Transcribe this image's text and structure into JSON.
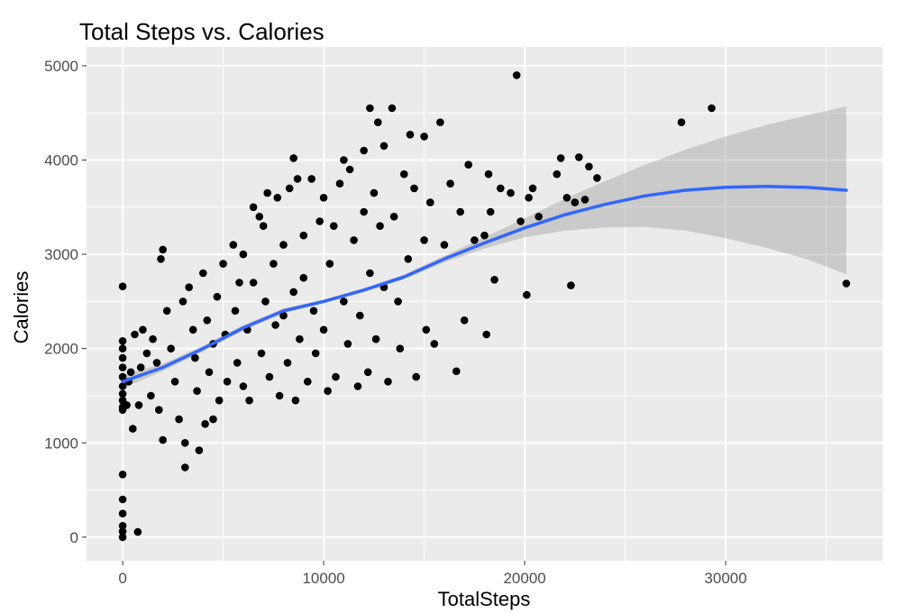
{
  "chart_data": {
    "type": "scatter",
    "title": "Total Steps vs. Calories",
    "xlabel": "TotalSteps",
    "ylabel": "Calories",
    "xlim": [
      -1800,
      37800
    ],
    "ylim": [
      -250,
      5200
    ],
    "xticks": [
      0,
      10000,
      20000,
      30000
    ],
    "xtick_labels": [
      "0",
      "10000",
      "20000",
      "30000"
    ],
    "yticks": [
      0,
      1000,
      2000,
      3000,
      4000,
      5000
    ],
    "ytick_labels": [
      "0",
      "1000",
      "2000",
      "3000",
      "4000",
      "5000"
    ],
    "grid": true,
    "colors": {
      "panel": "#ebebeb",
      "grid": "#ffffff",
      "points": "#000000",
      "smooth_line": "#3366ff",
      "ribbon": "#999999"
    },
    "series": [
      {
        "name": "observations",
        "type": "scatter",
        "points": [
          [
            0,
            0
          ],
          [
            0,
            60
          ],
          [
            0,
            120
          ],
          [
            0,
            250
          ],
          [
            0,
            400
          ],
          [
            0,
            665
          ],
          [
            750,
            55
          ],
          [
            0,
            1350
          ],
          [
            0,
            1380
          ],
          [
            0,
            1450
          ],
          [
            0,
            1520
          ],
          [
            0,
            1600
          ],
          [
            0,
            1700
          ],
          [
            0,
            1800
          ],
          [
            0,
            1900
          ],
          [
            0,
            2000
          ],
          [
            0,
            2080
          ],
          [
            0,
            2660
          ],
          [
            200,
            1400
          ],
          [
            300,
            1650
          ],
          [
            400,
            1750
          ],
          [
            500,
            1150
          ],
          [
            600,
            2150
          ],
          [
            800,
            1400
          ],
          [
            900,
            1800
          ],
          [
            1000,
            2200
          ],
          [
            1200,
            1950
          ],
          [
            1400,
            1500
          ],
          [
            1500,
            2100
          ],
          [
            1700,
            1850
          ],
          [
            1800,
            1350
          ],
          [
            1900,
            2950
          ],
          [
            2000,
            3050
          ],
          [
            2000,
            1030
          ],
          [
            2200,
            2400
          ],
          [
            2400,
            2000
          ],
          [
            2600,
            1650
          ],
          [
            2800,
            1250
          ],
          [
            3000,
            2500
          ],
          [
            3100,
            1000
          ],
          [
            3100,
            740
          ],
          [
            3300,
            2650
          ],
          [
            3500,
            2200
          ],
          [
            3600,
            1900
          ],
          [
            3700,
            1550
          ],
          [
            3800,
            920
          ],
          [
            4000,
            2800
          ],
          [
            4100,
            1200
          ],
          [
            4200,
            2300
          ],
          [
            4300,
            1750
          ],
          [
            4500,
            2050
          ],
          [
            4500,
            1250
          ],
          [
            4700,
            2550
          ],
          [
            4800,
            1450
          ],
          [
            5000,
            2900
          ],
          [
            5100,
            2150
          ],
          [
            5200,
            1650
          ],
          [
            5500,
            3100
          ],
          [
            5600,
            2400
          ],
          [
            5700,
            1850
          ],
          [
            5800,
            2700
          ],
          [
            6000,
            3000
          ],
          [
            6000,
            1600
          ],
          [
            6200,
            2200
          ],
          [
            6300,
            1450
          ],
          [
            6500,
            3500
          ],
          [
            6500,
            2700
          ],
          [
            6800,
            3400
          ],
          [
            6900,
            1950
          ],
          [
            7000,
            3300
          ],
          [
            7100,
            2500
          ],
          [
            7200,
            3650
          ],
          [
            7300,
            1700
          ],
          [
            7500,
            2900
          ],
          [
            7600,
            2250
          ],
          [
            7700,
            3600
          ],
          [
            7800,
            1500
          ],
          [
            8000,
            3100
          ],
          [
            8000,
            2350
          ],
          [
            8200,
            1850
          ],
          [
            8300,
            3700
          ],
          [
            8500,
            2600
          ],
          [
            8500,
            4020
          ],
          [
            8600,
            1450
          ],
          [
            8700,
            3800
          ],
          [
            8800,
            2100
          ],
          [
            9000,
            3200
          ],
          [
            9000,
            2750
          ],
          [
            9200,
            1650
          ],
          [
            9400,
            3800
          ],
          [
            9500,
            2400
          ],
          [
            9600,
            1950
          ],
          [
            9800,
            3350
          ],
          [
            10000,
            3600
          ],
          [
            10000,
            2200
          ],
          [
            10200,
            1550
          ],
          [
            10300,
            2900
          ],
          [
            10500,
            3300
          ],
          [
            10600,
            1700
          ],
          [
            10800,
            3750
          ],
          [
            11000,
            2500
          ],
          [
            11000,
            4000
          ],
          [
            11200,
            2050
          ],
          [
            11300,
            3900
          ],
          [
            11500,
            3150
          ],
          [
            11700,
            1600
          ],
          [
            11800,
            2350
          ],
          [
            12000,
            3450
          ],
          [
            12000,
            4100
          ],
          [
            12200,
            1750
          ],
          [
            12300,
            2800
          ],
          [
            12300,
            4550
          ],
          [
            12500,
            3650
          ],
          [
            12600,
            2100
          ],
          [
            12700,
            4400
          ],
          [
            12800,
            3300
          ],
          [
            13000,
            4150
          ],
          [
            13000,
            2650
          ],
          [
            13200,
            1650
          ],
          [
            13400,
            4550
          ],
          [
            13500,
            3400
          ],
          [
            13700,
            2500
          ],
          [
            13800,
            2000
          ],
          [
            14000,
            3850
          ],
          [
            14200,
            2950
          ],
          [
            14300,
            4270
          ],
          [
            14500,
            3700
          ],
          [
            14600,
            1700
          ],
          [
            15000,
            3150
          ],
          [
            15000,
            4250
          ],
          [
            15100,
            2200
          ],
          [
            15300,
            3550
          ],
          [
            15500,
            2050
          ],
          [
            15800,
            4400
          ],
          [
            16000,
            3100
          ],
          [
            16300,
            3750
          ],
          [
            16600,
            1760
          ],
          [
            16800,
            3450
          ],
          [
            17000,
            2300
          ],
          [
            17200,
            3950
          ],
          [
            17500,
            3150
          ],
          [
            18000,
            3200
          ],
          [
            18100,
            2150
          ],
          [
            18200,
            3850
          ],
          [
            18300,
            3450
          ],
          [
            18500,
            2730
          ],
          [
            18800,
            3700
          ],
          [
            19300,
            3650
          ],
          [
            19600,
            4900
          ],
          [
            19800,
            3350
          ],
          [
            20100,
            2570
          ],
          [
            20200,
            3600
          ],
          [
            20400,
            3700
          ],
          [
            20700,
            3400
          ],
          [
            21600,
            3850
          ],
          [
            21800,
            4020
          ],
          [
            22100,
            3600
          ],
          [
            22300,
            2670
          ],
          [
            22500,
            3550
          ],
          [
            22700,
            4030
          ],
          [
            23000,
            3580
          ],
          [
            23200,
            3930
          ],
          [
            23600,
            3810
          ],
          [
            27800,
            4400
          ],
          [
            29300,
            4550
          ],
          [
            36000,
            2690
          ]
        ]
      },
      {
        "name": "smooth",
        "type": "line",
        "x": [
          0,
          2000,
          4000,
          6000,
          8000,
          10000,
          12000,
          14000,
          16000,
          18000,
          20000,
          22000,
          24000,
          26000,
          28000,
          30000,
          32000,
          34000,
          36000
        ],
        "y": [
          1650,
          1800,
          2000,
          2220,
          2400,
          2500,
          2620,
          2760,
          2950,
          3120,
          3280,
          3420,
          3530,
          3620,
          3680,
          3710,
          3720,
          3710,
          3680
        ],
        "ci_low": [
          1580,
          1760,
          1970,
          2190,
          2375,
          2480,
          2600,
          2735,
          2915,
          3060,
          3180,
          3250,
          3285,
          3290,
          3250,
          3170,
          3070,
          2950,
          2790
        ],
        "ci_high": [
          1720,
          1840,
          2030,
          2250,
          2425,
          2520,
          2640,
          2785,
          2985,
          3180,
          3380,
          3590,
          3775,
          3950,
          4110,
          4250,
          4370,
          4470,
          4570
        ]
      }
    ]
  }
}
